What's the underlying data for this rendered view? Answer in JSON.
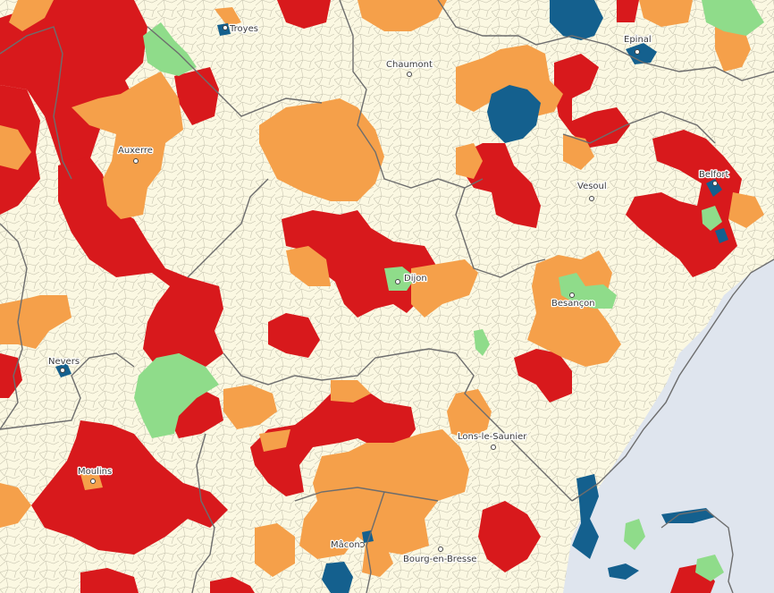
{
  "map": {
    "colors": {
      "background": "#fbf8e2",
      "red": "#d8191c",
      "orange": "#f5a04a",
      "green": "#8fdc8a",
      "blue": "#14608e",
      "water": "#dfe5ee",
      "boundary": "#6d6d6d"
    },
    "cities": [
      {
        "id": "troyes",
        "name": "Troyes"
      },
      {
        "id": "epinal",
        "name": "Epinal"
      },
      {
        "id": "chaumont",
        "name": "Chaumont"
      },
      {
        "id": "auxerre",
        "name": "Auxerre"
      },
      {
        "id": "belfort",
        "name": "Belfort"
      },
      {
        "id": "vesoul",
        "name": "Vesoul"
      },
      {
        "id": "dijon",
        "name": "Dijon"
      },
      {
        "id": "besancon",
        "name": "Besançon"
      },
      {
        "id": "nevers",
        "name": "Nevers"
      },
      {
        "id": "lons",
        "name": "Lons-le-Saunier"
      },
      {
        "id": "moulins",
        "name": "Moulins"
      },
      {
        "id": "macon",
        "name": "Mâcon"
      },
      {
        "id": "bourg",
        "name": "Bourg-en-Bresse"
      }
    ]
  }
}
